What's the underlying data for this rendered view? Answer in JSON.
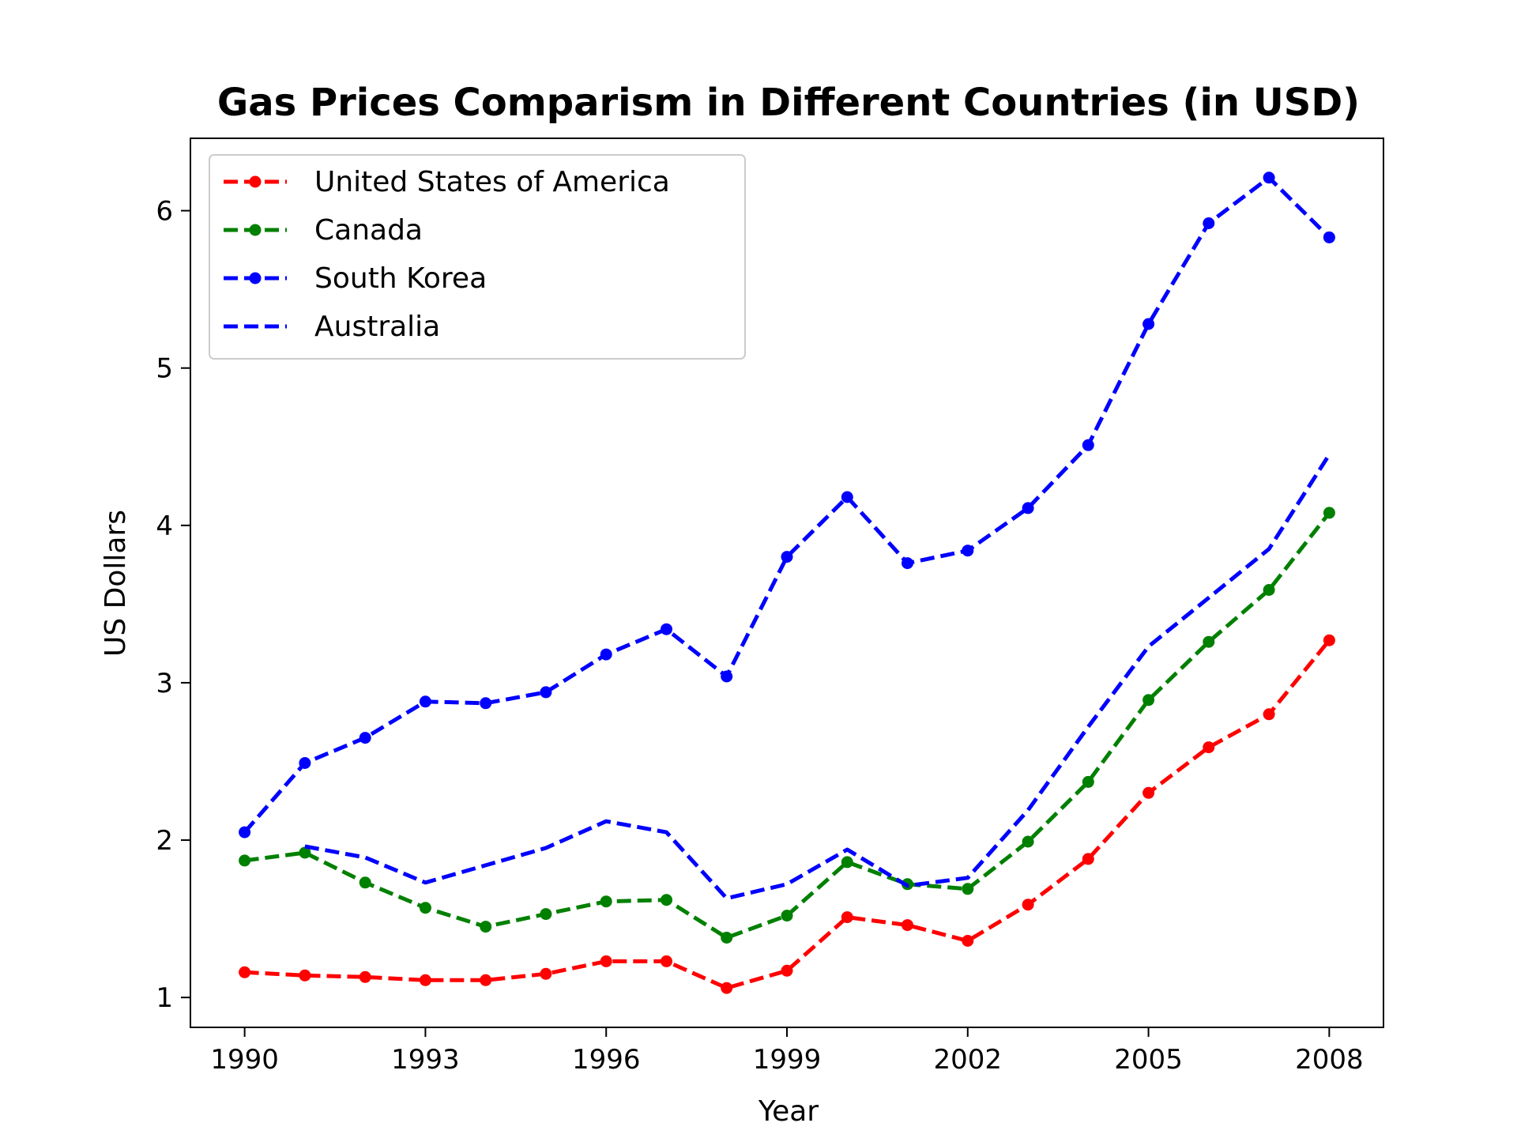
{
  "chart_data": {
    "type": "line",
    "title": "Gas Prices Comparism in Different Countries (in USD)",
    "xlabel": "Year",
    "ylabel": "US Dollars",
    "xlim": [
      1989.1,
      2008.9
    ],
    "ylim": [
      0.81,
      6.46
    ],
    "x_ticks": [
      1990,
      1993,
      1996,
      1999,
      2002,
      2005,
      2008
    ],
    "y_ticks": [
      1,
      2,
      3,
      4,
      5,
      6
    ],
    "x_tick_labels": [
      "1990",
      "1993",
      "1996",
      "1999",
      "2002",
      "2005",
      "2008"
    ],
    "y_tick_labels": [
      "1",
      "2",
      "3",
      "4",
      "5",
      "6"
    ],
    "grid": false,
    "legend_position": "upper-left",
    "series": [
      {
        "name": "United States of America",
        "color": "#ff0000",
        "marker": true,
        "x": [
          1990,
          1991,
          1992,
          1993,
          1994,
          1995,
          1996,
          1997,
          1998,
          1999,
          2000,
          2001,
          2002,
          2003,
          2004,
          2005,
          2006,
          2007,
          2008
        ],
        "values": [
          1.16,
          1.14,
          1.13,
          1.11,
          1.11,
          1.15,
          1.23,
          1.23,
          1.06,
          1.17,
          1.51,
          1.46,
          1.36,
          1.59,
          1.88,
          2.3,
          2.59,
          2.8,
          3.27
        ]
      },
      {
        "name": "Canada",
        "color": "#008000",
        "marker": true,
        "x": [
          1990,
          1991,
          1992,
          1993,
          1994,
          1995,
          1996,
          1997,
          1998,
          1999,
          2000,
          2001,
          2002,
          2003,
          2004,
          2005,
          2006,
          2007,
          2008
        ],
        "values": [
          1.87,
          1.92,
          1.73,
          1.57,
          1.45,
          1.53,
          1.61,
          1.62,
          1.38,
          1.52,
          1.86,
          1.72,
          1.69,
          1.99,
          2.37,
          2.89,
          3.26,
          3.59,
          4.08
        ]
      },
      {
        "name": "South Korea",
        "color": "#0000ff",
        "marker": true,
        "x": [
          1990,
          1991,
          1992,
          1993,
          1994,
          1995,
          1996,
          1997,
          1998,
          1999,
          2000,
          2001,
          2002,
          2003,
          2004,
          2005,
          2006,
          2007,
          2008
        ],
        "values": [
          2.05,
          2.49,
          2.65,
          2.88,
          2.87,
          2.94,
          3.18,
          3.34,
          3.04,
          3.8,
          4.18,
          3.76,
          3.84,
          4.11,
          4.51,
          5.28,
          5.92,
          6.21,
          5.83
        ]
      },
      {
        "name": "Australia",
        "color": "#0000ff",
        "marker": false,
        "x": [
          1991,
          1992,
          1993,
          1994,
          1995,
          1996,
          1997,
          1998,
          1999,
          2000,
          2001,
          2002,
          2003,
          2004,
          2005,
          2006,
          2007,
          2008
        ],
        "values": [
          1.96,
          1.89,
          1.73,
          1.84,
          1.95,
          2.12,
          2.05,
          1.63,
          1.72,
          1.94,
          1.71,
          1.76,
          2.19,
          2.72,
          3.23,
          3.54,
          3.85,
          4.45
        ]
      }
    ]
  }
}
